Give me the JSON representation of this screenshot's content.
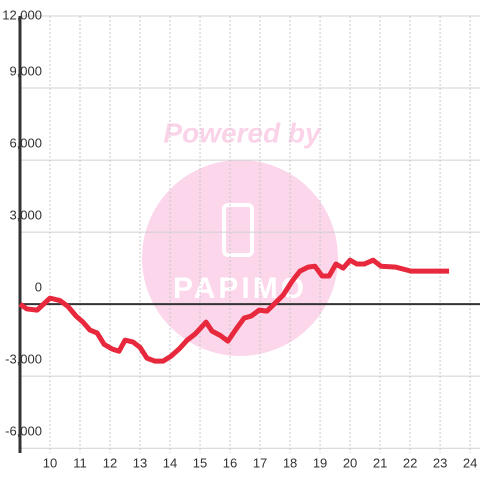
{
  "chart_data": {
    "type": "line",
    "annotations": [
      "Powered by",
      "PAPIMO"
    ],
    "x": [
      9.0,
      9.23,
      9.57,
      10.0,
      10.33,
      10.6,
      10.87,
      11.1,
      11.33,
      11.57,
      11.8,
      12.07,
      12.3,
      12.5,
      12.77,
      13.0,
      13.23,
      13.5,
      13.77,
      14.03,
      14.3,
      14.57,
      14.83,
      15.2,
      15.4,
      15.67,
      15.93,
      16.2,
      16.47,
      16.7,
      16.97,
      17.23,
      17.5,
      17.77,
      18.07,
      18.33,
      18.6,
      18.83,
      19.07,
      19.3,
      19.53,
      19.77,
      20.0,
      20.23,
      20.47,
      20.77,
      21.03,
      21.53,
      22.03,
      23.3
    ],
    "series": [
      {
        "color": "#e8283c",
        "values": [
          0,
          -200,
          -250,
          250,
          150,
          -100,
          -500,
          -750,
          -1080,
          -1200,
          -1670,
          -1870,
          -1960,
          -1500,
          -1580,
          -1800,
          -2250,
          -2375,
          -2375,
          -2170,
          -1870,
          -1500,
          -1250,
          -750,
          -1125,
          -1300,
          -1540,
          -1040,
          -580,
          -500,
          -250,
          -290,
          40,
          375,
          960,
          1375,
          1540,
          1580,
          1170,
          1170,
          1670,
          1500,
          1830,
          1670,
          1670,
          1830,
          1580,
          1540,
          1375,
          1375
        ]
      }
    ],
    "xlim": [
      9,
      24.33
    ],
    "xticks": [
      10,
      11,
      12,
      13,
      14,
      15,
      16,
      17,
      18,
      19,
      20,
      21,
      22,
      23,
      24
    ],
    "ylim": [
      -6200,
      12000
    ],
    "yticks": [
      {
        "value": 12000,
        "label": "12,000"
      },
      {
        "value": 9000,
        "label": "9,000"
      },
      {
        "value": 6000,
        "label": "6,000"
      },
      {
        "value": 3000,
        "label": "3,000"
      },
      0,
      {
        "value": -3000,
        "label": "-3,000"
      },
      {
        "value": -6000,
        "label": "-6,000"
      }
    ],
    "grid": true
  }
}
